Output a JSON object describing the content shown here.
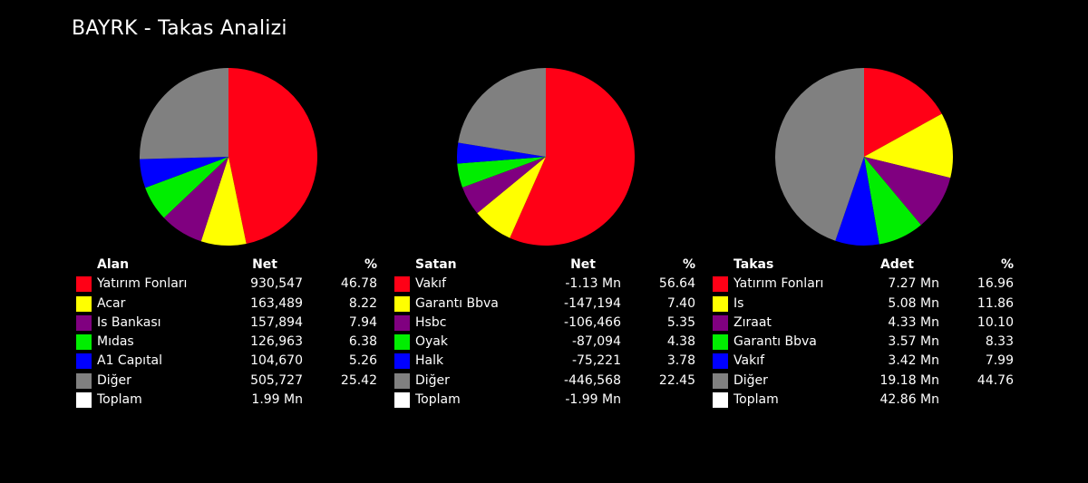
{
  "title": "BAYRK - Takas Analizi",
  "colors": {
    "red": "#ff0016",
    "yellow": "#ffff00",
    "purple": "#800080",
    "green": "#00ee00",
    "blue": "#0000ff",
    "gray": "#808080",
    "white": "#ffffff"
  },
  "chart_data": [
    {
      "type": "pie",
      "title": "Alan",
      "columns": [
        "Alan",
        "Net",
        "%"
      ],
      "slices": [
        {
          "label": "Yatırım Fonları",
          "net": "930,547",
          "pct": 46.78,
          "pct_text": "46.78",
          "color": "#ff0016"
        },
        {
          "label": "Acar",
          "net": "163,489",
          "pct": 8.22,
          "pct_text": "8.22",
          "color": "#ffff00"
        },
        {
          "label": "Is Bankası",
          "net": "157,894",
          "pct": 7.94,
          "pct_text": "7.94",
          "color": "#800080"
        },
        {
          "label": "Mıdas",
          "net": "126,963",
          "pct": 6.38,
          "pct_text": "6.38",
          "color": "#00ee00"
        },
        {
          "label": "A1 Capıtal",
          "net": "104,670",
          "pct": 5.26,
          "pct_text": "5.26",
          "color": "#0000ff"
        },
        {
          "label": "Diğer",
          "net": "505,727",
          "pct": 25.42,
          "pct_text": "25.42",
          "color": "#808080"
        }
      ],
      "total": {
        "label": "Toplam",
        "net": "1.99 Mn",
        "color": "#ffffff"
      }
    },
    {
      "type": "pie",
      "title": "Satan",
      "columns": [
        "Satan",
        "Net",
        "%"
      ],
      "slices": [
        {
          "label": "Vakıf",
          "net": "-1.13 Mn",
          "pct": 56.64,
          "pct_text": "56.64",
          "color": "#ff0016"
        },
        {
          "label": "Garantı Bbva",
          "net": "-147,194",
          "pct": 7.4,
          "pct_text": "7.40",
          "color": "#ffff00"
        },
        {
          "label": "Hsbc",
          "net": "-106,466",
          "pct": 5.35,
          "pct_text": "5.35",
          "color": "#800080"
        },
        {
          "label": "Oyak",
          "net": "-87,094",
          "pct": 4.38,
          "pct_text": "4.38",
          "color": "#00ee00"
        },
        {
          "label": "Halk",
          "net": "-75,221",
          "pct": 3.78,
          "pct_text": "3.78",
          "color": "#0000ff"
        },
        {
          "label": "Diğer",
          "net": "-446,568",
          "pct": 22.45,
          "pct_text": "22.45",
          "color": "#808080"
        }
      ],
      "total": {
        "label": "Toplam",
        "net": "-1.99 Mn",
        "color": "#ffffff"
      }
    },
    {
      "type": "pie",
      "title": "Takas",
      "columns": [
        "Takas",
        "Adet",
        "%"
      ],
      "slices": [
        {
          "label": "Yatırım Fonları",
          "net": "7.27 Mn",
          "pct": 16.96,
          "pct_text": "16.96",
          "color": "#ff0016"
        },
        {
          "label": "Is",
          "net": "5.08 Mn",
          "pct": 11.86,
          "pct_text": "11.86",
          "color": "#ffff00"
        },
        {
          "label": "Zıraat",
          "net": "4.33 Mn",
          "pct": 10.1,
          "pct_text": "10.10",
          "color": "#800080"
        },
        {
          "label": "Garantı Bbva",
          "net": "3.57 Mn",
          "pct": 8.33,
          "pct_text": "8.33",
          "color": "#00ee00"
        },
        {
          "label": "Vakıf",
          "net": "3.42 Mn",
          "pct": 7.99,
          "pct_text": "7.99",
          "color": "#0000ff"
        },
        {
          "label": "Diğer",
          "net": "19.18 Mn",
          "pct": 44.76,
          "pct_text": "44.76",
          "color": "#808080"
        }
      ],
      "total": {
        "label": "Toplam",
        "net": "42.86 Mn",
        "color": "#ffffff"
      }
    }
  ]
}
